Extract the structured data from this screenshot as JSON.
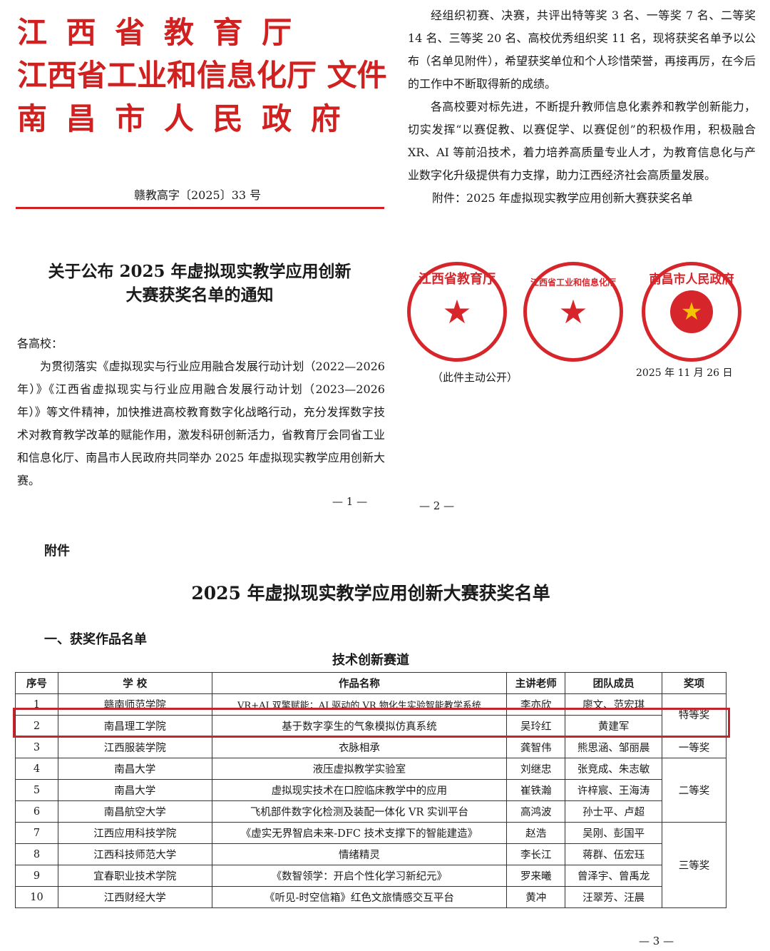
{
  "page1": {
    "issuers": [
      "江 西 省 教 育 厅",
      "江西省工业和信息化厅  文件",
      "南 昌 市 人 民 政 府"
    ],
    "doc_number": "赣教高字〔2025〕33 号",
    "title_lines": [
      "关于公布 2025 年虚拟现实教学应用创新",
      "大赛获奖名单的通知"
    ],
    "salutation": "各高校：",
    "body": "为贯彻落实《虚拟现实与行业应用融合发展行动计划（2022—2026 年）》《江西省虚拟现实与行业应用融合发展行动计划（2023—2026 年）》等文件精神，加快推进高校教育数字化战略行动，充分发挥数字技术对教育教学改革的赋能作用，激发科研创新活力，省教育厅会同省工业和信息化厅、南昌市人民政府共同举办 2025 年虚拟现实教学应用创新大赛。",
    "page_number": "— 1 —"
  },
  "page2": {
    "para1": "经组织初赛、决赛，共评出特等奖 3 名、一等奖 7 名、二等奖 14 名、三等奖 20 名、高校优秀组织奖 11 名，现将获奖名单予以公布（名单见附件），希望获奖单位和个人珍惜荣誉，再接再厉，在今后的工作中不断取得新的成绩。",
    "para2": "各高校要对标先进，不断提升教师信息化素养和教学创新能力，切实发挥“以赛促教、以赛促学、以赛促创”的积极作用，积极融合 XR、AI 等前沿技术，着力培养高质量专业人才，为教育信息化与产业数字化升级提供有力支撑，助力江西经济社会高质量发展。",
    "attachment": "附件：2025 年虚拟现实教学应用创新大赛获奖名单",
    "seals": [
      {
        "arc": "江西省教育厅",
        "inner": "江西省教育厅"
      },
      {
        "arc": "江西省工业和信息化厅",
        "inner": "江西省工业和信息化厅"
      },
      {
        "arc": "南昌市人民政府",
        "inner": "南昌市人民政府"
      }
    ],
    "date": "2025 年 11 月 26 日",
    "public_note": "（此件主动公开）",
    "page_number": "— 2 —"
  },
  "page3": {
    "attachment_label": "附件",
    "title": "2025 年虚拟现实教学应用创新大赛获奖名单",
    "section": "一、获奖作品名单",
    "track": "技术创新赛道",
    "headers": [
      "序号",
      "学  校",
      "作品名称",
      "主讲老师",
      "团队成员",
      "奖项"
    ],
    "rows": [
      [
        "1",
        "赣南师范学院",
        "VR+AI 双擎赋能：AI 驱动的 VR 物化生实验智能教学系统",
        "李亦欣",
        "廖文、范宏琪"
      ],
      [
        "2",
        "南昌理工学院",
        "基于数字孪生的气象模拟仿真系统",
        "吴玲红",
        "黄建军"
      ],
      [
        "3",
        "江西服装学院",
        "衣脉相承",
        "龚智伟",
        "熊思涵、邹丽晨"
      ],
      [
        "4",
        "南昌大学",
        "液压虚拟教学实验室",
        "刘继忠",
        "张竞成、朱志敏"
      ],
      [
        "5",
        "南昌大学",
        "虚拟现实技术在口腔临床教学中的应用",
        "崔铁瀚",
        "许梓宸、王海涛"
      ],
      [
        "6",
        "南昌航空大学",
        "飞机部件数字化检测及装配一体化 VR 实训平台",
        "高鸿波",
        "孙士平、卢超"
      ],
      [
        "7",
        "江西应用科技学院",
        "《虚实无界智启未来-DFC 技术支撑下的智能建造》",
        "赵浩",
        "吴刚、彭国平"
      ],
      [
        "8",
        "江西科技师范大学",
        "情绪精灵",
        "李长江",
        "蒋群、伍宏珏"
      ],
      [
        "9",
        "宜春职业技术学院",
        "《数智领学：开启个性化学习新纪元》",
        "罗来曦",
        "曾泽宇、曾禹龙"
      ],
      [
        "10",
        "江西财经大学",
        "《听见-时空信箱》红色文旅情感交互平台",
        "黄冲",
        "汪翠芳、汪晨"
      ]
    ],
    "awards": [
      "特等奖",
      "一等奖",
      "二等奖",
      "三等奖"
    ],
    "page_number": "— 3 —"
  },
  "colors": {
    "red": "#d02020",
    "highlight": "#c0262c"
  }
}
